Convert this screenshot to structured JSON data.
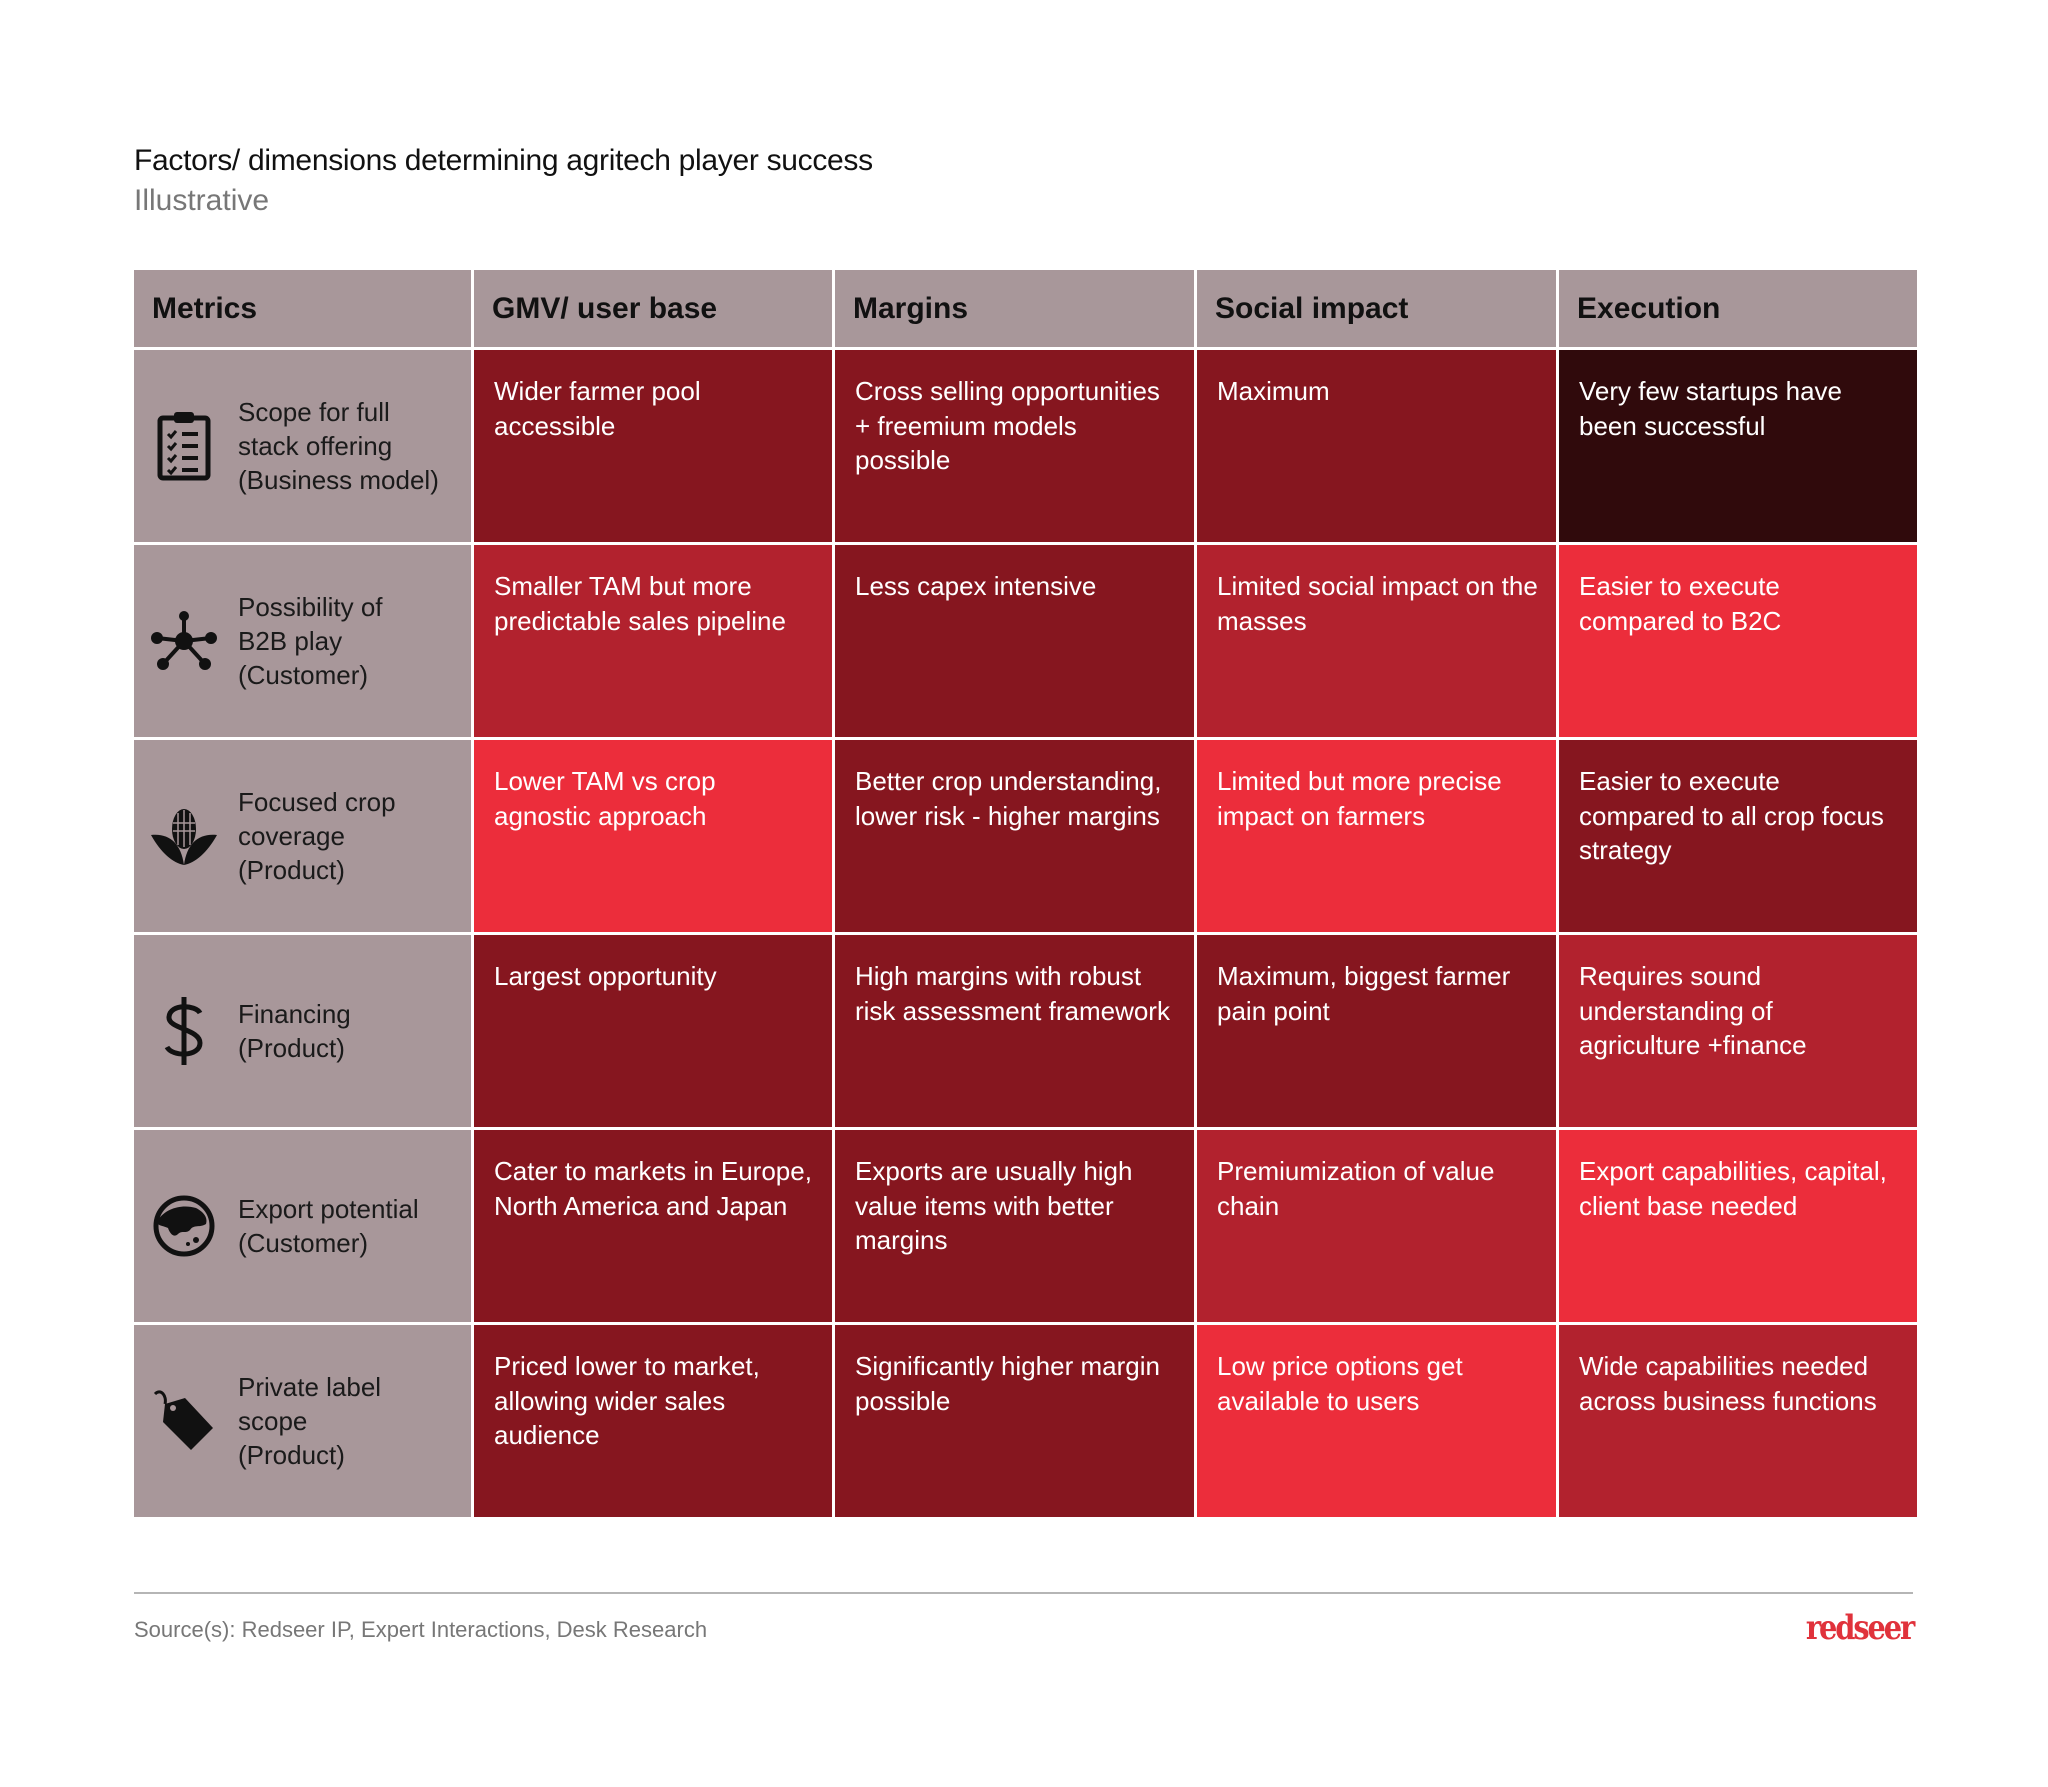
{
  "header": {
    "title": "Factors/ dimensions determining agritech player success",
    "subtitle": "Illustrative"
  },
  "colors": {
    "metric_bg": "#a8979a",
    "darkest": "#300a0c",
    "dark": "#86161f",
    "medium": "#b2222e",
    "bright": "#ec2d3b",
    "brand": "#e0323b"
  },
  "table": {
    "columns": [
      "Metrics",
      "GMV/ user base",
      "Margins",
      "Social impact",
      "Execution"
    ],
    "rows": [
      {
        "icon": "clipboard-checklist-icon",
        "metric": "Scope for full\nstack offering\n(Business model)",
        "cells": [
          {
            "text": "Wider farmer pool accessible",
            "shade": "dark"
          },
          {
            "text": "Cross selling opportunities\n+ freemium models possible",
            "shade": "dark"
          },
          {
            "text": "Maximum",
            "shade": "dark"
          },
          {
            "text": "Very few startups have been successful",
            "shade": "darkest"
          }
        ]
      },
      {
        "icon": "network-hub-icon",
        "metric": "Possibility of\nB2B play\n(Customer)",
        "cells": [
          {
            "text": "Smaller TAM but more predictable sales pipeline",
            "shade": "medium"
          },
          {
            "text": "Less capex intensive",
            "shade": "dark"
          },
          {
            "text": "Limited social impact on the masses",
            "shade": "medium"
          },
          {
            "text": "Easier to execute compared to B2C",
            "shade": "bright"
          }
        ]
      },
      {
        "icon": "corn-icon",
        "metric": "Focused crop\ncoverage\n(Product)",
        "cells": [
          {
            "text": "Lower TAM vs crop agnostic approach",
            "shade": "bright"
          },
          {
            "text": "Better crop understanding, lower risk - higher margins",
            "shade": "dark"
          },
          {
            "text": "Limited but more precise impact on farmers",
            "shade": "bright"
          },
          {
            "text": "Easier to execute compared to all crop focus strategy",
            "shade": "dark"
          }
        ]
      },
      {
        "icon": "dollar-icon",
        "metric": "Financing\n(Product)",
        "cells": [
          {
            "text": "Largest opportunity",
            "shade": "dark"
          },
          {
            "text": "High margins with robust risk assessment framework",
            "shade": "dark"
          },
          {
            "text": "Maximum, biggest farmer pain point",
            "shade": "dark"
          },
          {
            "text": "Requires sound understanding of agriculture +finance",
            "shade": "medium"
          }
        ]
      },
      {
        "icon": "globe-icon",
        "metric": "Export potential\n(Customer)",
        "cells": [
          {
            "text": "Cater to markets in Europe, North America and Japan",
            "shade": "dark"
          },
          {
            "text": "Exports are usually high value items with better margins",
            "shade": "dark"
          },
          {
            "text": "Premiumization of value chain",
            "shade": "medium"
          },
          {
            "text": "Export capabilities, capital, client base needed",
            "shade": "bright"
          }
        ]
      },
      {
        "icon": "price-tag-icon",
        "metric": "Private label\nscope\n(Product)",
        "cells": [
          {
            "text": "Priced lower to market, allowing wider sales audience",
            "shade": "dark"
          },
          {
            "text": "Significantly higher margin possible",
            "shade": "dark"
          },
          {
            "text": "Low price options get available to users",
            "shade": "bright"
          },
          {
            "text": "Wide capabilities needed across business functions",
            "shade": "medium"
          }
        ]
      }
    ]
  },
  "footer": {
    "source": "Source(s): Redseer IP, Expert Interactions, Desk Research",
    "logo": "redseer"
  }
}
